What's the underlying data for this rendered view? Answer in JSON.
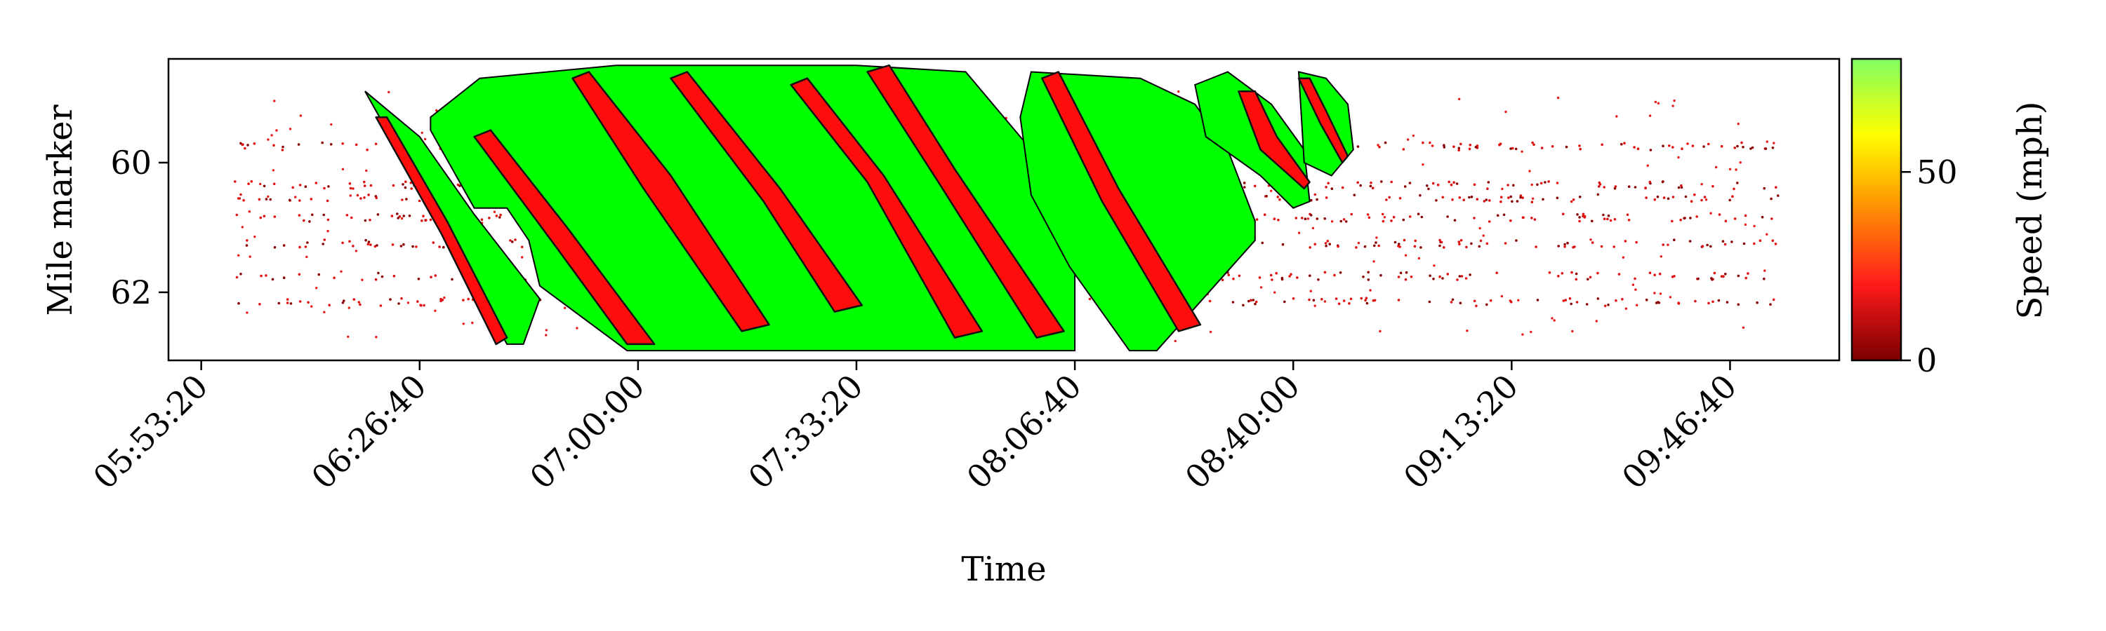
{
  "chart_data": {
    "type": "scatter",
    "xlabel": "Time",
    "ylabel": "Mile marker",
    "colorbar_label": "Speed (mph)",
    "x_tick_labels": [
      "05:53:20",
      "06:26:40",
      "07:00:00",
      "07:33:20",
      "08:06:40",
      "08:40:00",
      "09:13:20",
      "09:46:40"
    ],
    "x_tick_seconds": [
      21200,
      23200,
      25200,
      27200,
      29200,
      31200,
      33200,
      35200
    ],
    "xlim_seconds": [
      20900,
      36200
    ],
    "y_ticks": [
      60,
      62
    ],
    "ylim": [
      63.05,
      58.4
    ],
    "y_inverted": true,
    "colorbar": {
      "ticks": [
        0,
        50
      ],
      "range": [
        0,
        80
      ],
      "colors": [
        "#7a0000",
        "#ff1a1a",
        "#ffa500",
        "#ffff00",
        "#80ff60"
      ]
    },
    "free_flow_regions": [
      [
        [
          22700,
          58.9
        ],
        [
          23400,
          61.0
        ],
        [
          24000,
          62.8
        ],
        [
          24150,
          62.8
        ],
        [
          24300,
          62.1
        ],
        [
          23700,
          60.8
        ],
        [
          23200,
          59.6
        ],
        [
          22700,
          58.9
        ]
      ],
      [
        [
          23300,
          59.3
        ],
        [
          23750,
          58.7
        ],
        [
          25000,
          58.5
        ],
        [
          27200,
          58.5
        ],
        [
          28200,
          58.6
        ],
        [
          28800,
          59.8
        ],
        [
          29200,
          61.2
        ],
        [
          29200,
          62.9
        ],
        [
          25100,
          62.9
        ],
        [
          24300,
          61.9
        ],
        [
          24200,
          61.2
        ],
        [
          24000,
          60.7
        ],
        [
          23700,
          60.7
        ],
        [
          23300,
          59.5
        ]
      ],
      [
        [
          28800,
          58.6
        ],
        [
          29800,
          58.7
        ],
        [
          30300,
          59.1
        ],
        [
          30600,
          59.8
        ],
        [
          30850,
          60.9
        ],
        [
          30850,
          61.2
        ],
        [
          29950,
          62.9
        ],
        [
          29700,
          62.9
        ],
        [
          29150,
          61.6
        ],
        [
          28800,
          60.5
        ],
        [
          28700,
          59.3
        ],
        [
          28800,
          58.6
        ]
      ],
      [
        [
          30300,
          58.8
        ],
        [
          30600,
          58.6
        ],
        [
          31000,
          59.1
        ],
        [
          31300,
          59.8
        ],
        [
          31350,
          60.6
        ],
        [
          31200,
          60.7
        ],
        [
          30900,
          60.2
        ],
        [
          30400,
          59.6
        ],
        [
          30300,
          58.8
        ]
      ],
      [
        [
          31250,
          58.6
        ],
        [
          31500,
          58.7
        ],
        [
          31700,
          59.1
        ],
        [
          31750,
          59.8
        ],
        [
          31550,
          60.2
        ],
        [
          31300,
          60.0
        ],
        [
          31250,
          58.6
        ]
      ]
    ],
    "congested_bands": [
      [
        [
          22800,
          59.3
        ],
        [
          23400,
          61.1
        ],
        [
          23900,
          62.8
        ],
        [
          24000,
          62.7
        ],
        [
          23450,
          60.9
        ],
        [
          22900,
          59.3
        ]
      ],
      [
        [
          23700,
          59.6
        ],
        [
          24450,
          61.3
        ],
        [
          25100,
          62.8
        ],
        [
          25350,
          62.8
        ],
        [
          24550,
          61.0
        ],
        [
          23850,
          59.5
        ]
      ],
      [
        [
          24600,
          58.7
        ],
        [
          25250,
          60.4
        ],
        [
          26150,
          62.6
        ],
        [
          26400,
          62.5
        ],
        [
          25500,
          60.2
        ],
        [
          24750,
          58.6
        ]
      ],
      [
        [
          25500,
          58.7
        ],
        [
          26350,
          60.6
        ],
        [
          27000,
          62.3
        ],
        [
          27250,
          62.2
        ],
        [
          26500,
          60.4
        ],
        [
          25650,
          58.6
        ]
      ],
      [
        [
          26600,
          58.8
        ],
        [
          27300,
          60.3
        ],
        [
          28100,
          62.7
        ],
        [
          28350,
          62.6
        ],
        [
          27450,
          60.2
        ],
        [
          26750,
          58.7
        ]
      ],
      [
        [
          27300,
          58.6
        ],
        [
          27950,
          60.3
        ],
        [
          28850,
          62.7
        ],
        [
          29100,
          62.6
        ],
        [
          28100,
          60.1
        ],
        [
          27500,
          58.5
        ]
      ],
      [
        [
          28900,
          58.7
        ],
        [
          29450,
          60.6
        ],
        [
          30150,
          62.6
        ],
        [
          30350,
          62.5
        ],
        [
          29600,
          60.4
        ],
        [
          29050,
          58.6
        ]
      ],
      [
        [
          30700,
          58.9
        ],
        [
          30900,
          59.8
        ],
        [
          31300,
          60.4
        ],
        [
          31350,
          60.3
        ],
        [
          31050,
          59.6
        ],
        [
          30850,
          58.9
        ]
      ],
      [
        [
          31250,
          58.7
        ],
        [
          31450,
          59.4
        ],
        [
          31650,
          60.0
        ],
        [
          31700,
          59.9
        ],
        [
          31500,
          59.2
        ],
        [
          31350,
          58.7
        ]
      ]
    ],
    "scatter_rows_mile": [
      59.75,
      60.35,
      60.55,
      60.85,
      61.25,
      61.75,
      62.15
    ],
    "scatter_x_range_seconds": [
      21500,
      35650
    ]
  }
}
